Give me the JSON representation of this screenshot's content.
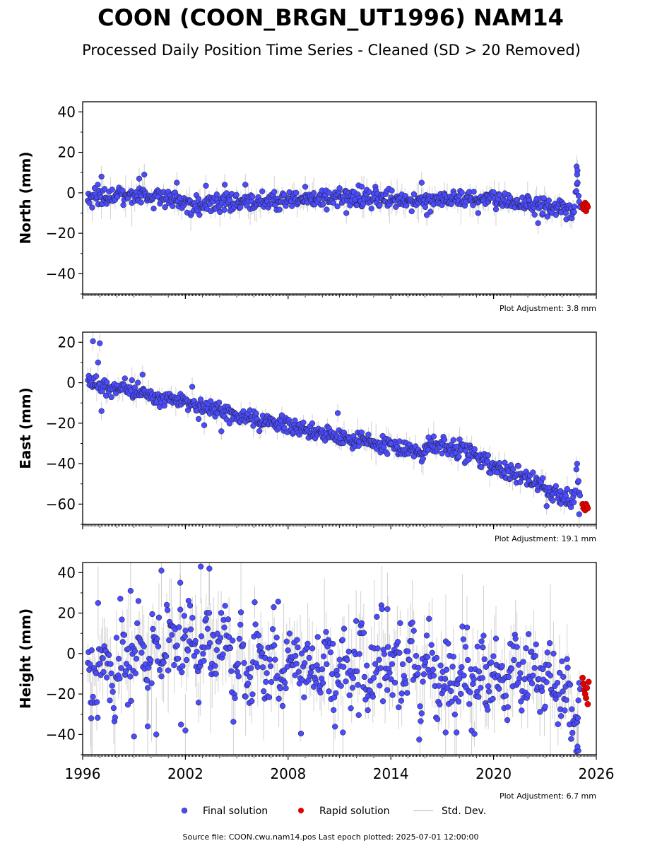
{
  "title": "COON (COON_BRGN_UT1996) NAM14",
  "subtitle": "Processed Daily Position Time Series - Cleaned (SD > 20 Removed)",
  "legend": {
    "final": "Final solution",
    "rapid": "Rapid solution",
    "std": "Std. Dev."
  },
  "footer": "Source file: COON.cwu.nam14.pos  Last epoch plotted: 2025-07-01 12:00:00",
  "colors": {
    "final": "#4b4bff",
    "rapid": "#e00000",
    "std": "#9a9a9a"
  },
  "chart_data": [
    {
      "type": "scatter",
      "ylabel": "North (mm)",
      "ylim": [
        -50,
        45
      ],
      "yticks": [
        -40,
        -20,
        0,
        20,
        40
      ],
      "xlim": [
        1996,
        2026
      ],
      "xticks": [
        1996,
        2002,
        2008,
        2014,
        2020,
        2026
      ],
      "show_xtick_labels": false,
      "adjustment": "Plot Adjustment: 3.8 mm",
      "trend": [
        [
          1996.3,
          -2
        ],
        [
          1999.0,
          -1.5
        ],
        [
          2003.0,
          -6
        ],
        [
          2006.0,
          -4
        ],
        [
          2010.0,
          -3
        ],
        [
          2014.0,
          -3
        ],
        [
          2016.0,
          -4
        ],
        [
          2018.0,
          -3
        ],
        [
          2020.0,
          -4
        ],
        [
          2022.0,
          -6
        ],
        [
          2024.0,
          -8
        ],
        [
          2024.7,
          -9
        ],
        [
          2024.9,
          5
        ],
        [
          2025.05,
          -7
        ],
        [
          2025.3,
          -8
        ]
      ],
      "scatter_sd": 2.2,
      "err_sd": 3.5,
      "outliers": [
        [
          1997.1,
          8
        ],
        [
          1999.3,
          7
        ],
        [
          1999.6,
          9
        ],
        [
          2001.5,
          5
        ],
        [
          2003.2,
          3.5
        ],
        [
          2004.3,
          4
        ],
        [
          2005.5,
          4
        ],
        [
          2009.0,
          3
        ],
        [
          2011.4,
          -10
        ],
        [
          2012.3,
          3
        ],
        [
          2015.8,
          5
        ],
        [
          2016.1,
          -11
        ],
        [
          2019.1,
          -10
        ],
        [
          2022.6,
          -15
        ],
        [
          2024.85,
          13
        ],
        [
          2024.9,
          11
        ],
        [
          2024.88,
          9
        ]
      ],
      "rapid": [
        [
          2025.2,
          -6
        ],
        [
          2025.25,
          -8
        ],
        [
          2025.3,
          -7
        ],
        [
          2025.35,
          -5
        ],
        [
          2025.4,
          -9
        ],
        [
          2025.45,
          -6
        ],
        [
          2025.5,
          -7
        ]
      ]
    },
    {
      "type": "scatter",
      "ylabel": "East (mm)",
      "ylim": [
        -70,
        25
      ],
      "yticks": [
        -60,
        -40,
        -20,
        0,
        20
      ],
      "xlim": [
        1996,
        2026
      ],
      "xticks": [
        1996,
        2002,
        2008,
        2014,
        2020,
        2026
      ],
      "show_xtick_labels": false,
      "adjustment": "Plot Adjustment: 19.1 mm",
      "trend": [
        [
          1996.3,
          2
        ],
        [
          1997.0,
          -2
        ],
        [
          1999.0,
          -4
        ],
        [
          2002.0,
          -10
        ],
        [
          2005.0,
          -16
        ],
        [
          2008.0,
          -21
        ],
        [
          2011.0,
          -27
        ],
        [
          2014.0,
          -31
        ],
        [
          2015.9,
          -35
        ],
        [
          2016.2,
          -30
        ],
        [
          2019.0,
          -36
        ],
        [
          2020.0,
          -42
        ],
        [
          2022.0,
          -47
        ],
        [
          2023.0,
          -52
        ],
        [
          2024.0,
          -57
        ],
        [
          2024.7,
          -58
        ],
        [
          2024.88,
          -42
        ],
        [
          2025.05,
          -57
        ],
        [
          2025.3,
          -61
        ]
      ],
      "scatter_sd": 2.0,
      "err_sd": 3.0,
      "outliers": [
        [
          1996.6,
          20.5
        ],
        [
          1997.0,
          19.5
        ],
        [
          1996.9,
          10
        ],
        [
          1997.1,
          -14
        ],
        [
          1999.5,
          4
        ],
        [
          2002.4,
          -2
        ],
        [
          2003.1,
          -21
        ],
        [
          2004.1,
          -24
        ],
        [
          2010.9,
          -15
        ],
        [
          2014.0,
          -30
        ],
        [
          2016.2,
          -27
        ],
        [
          2023.1,
          -61
        ],
        [
          2025.0,
          -65
        ]
      ],
      "rapid": [
        [
          2025.2,
          -60
        ],
        [
          2025.25,
          -62
        ],
        [
          2025.3,
          -61
        ],
        [
          2025.35,
          -63
        ],
        [
          2025.4,
          -60
        ],
        [
          2025.45,
          -61
        ],
        [
          2025.5,
          -62
        ]
      ]
    },
    {
      "type": "scatter",
      "ylabel": "Height (mm)",
      "ylim": [
        -50,
        45
      ],
      "yticks": [
        -40,
        -20,
        0,
        20,
        40
      ],
      "xlim": [
        1996,
        2026
      ],
      "xticks": [
        1996,
        2002,
        2008,
        2014,
        2020,
        2026
      ],
      "show_xtick_labels": true,
      "adjustment": "Plot Adjustment: 6.7 mm",
      "trend": [
        [
          1996.3,
          -8
        ],
        [
          1998.0,
          -6
        ],
        [
          1999.5,
          0
        ],
        [
          2001.0,
          2
        ],
        [
          2003.0,
          6
        ],
        [
          2004.5,
          4
        ],
        [
          2005.0,
          -5
        ],
        [
          2008.0,
          -5
        ],
        [
          2010.0,
          -7
        ],
        [
          2012.0,
          -10
        ],
        [
          2014.0,
          -8
        ],
        [
          2016.0,
          -10
        ],
        [
          2018.0,
          -12
        ],
        [
          2020.0,
          -12
        ],
        [
          2022.0,
          -12
        ],
        [
          2023.0,
          -15
        ],
        [
          2024.0,
          -20
        ],
        [
          2024.7,
          -28
        ],
        [
          2025.0,
          -22
        ],
        [
          2025.3,
          -15
        ]
      ],
      "scatter_sd": 9.5,
      "err_sd": 12,
      "outliers": [
        [
          1996.9,
          25
        ],
        [
          1998.8,
          31
        ],
        [
          2000.6,
          41
        ],
        [
          2001.7,
          35
        ],
        [
          2002.9,
          43
        ],
        [
          2003.4,
          42
        ],
        [
          2013.8,
          22
        ],
        [
          1996.5,
          -32
        ],
        [
          1999.0,
          -41
        ],
        [
          1999.8,
          -36
        ],
        [
          2000.3,
          -40
        ],
        [
          2002.0,
          -38
        ],
        [
          2011.2,
          -39
        ],
        [
          2017.2,
          -39
        ],
        [
          2024.95,
          -48
        ],
        [
          2024.9,
          -46
        ]
      ],
      "rapid": [
        [
          2025.2,
          -12
        ],
        [
          2025.25,
          -15
        ],
        [
          2025.3,
          -18
        ],
        [
          2025.35,
          -20
        ],
        [
          2025.4,
          -22
        ],
        [
          2025.45,
          -17
        ],
        [
          2025.5,
          -25
        ],
        [
          2025.55,
          -14
        ]
      ]
    }
  ]
}
